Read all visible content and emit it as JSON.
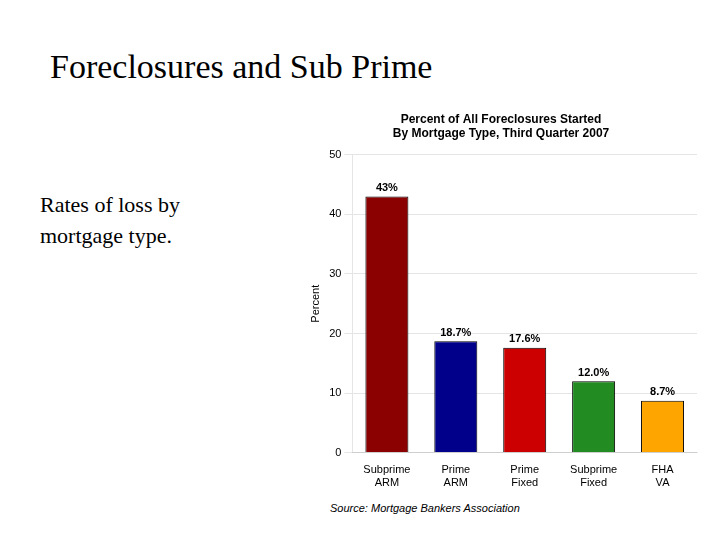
{
  "chart_data": {
    "type": "bar",
    "title": "Percent of All Foreclosures Started\nBy Mortgage Type, Third Quarter 2007",
    "annotations": [
      "Foreclosures and Sub Prime",
      "Rates of loss by\nmortgage type.",
      "Source: Mortgage Bankers Association"
    ],
    "categories": [
      "Subprime\nARM",
      "Prime\nARM",
      "Prime\nFixed",
      "Subprime\nFixed",
      "FHA\nVA"
    ],
    "values": [
      43.0,
      18.7,
      17.6,
      12.0,
      8.7
    ],
    "value_labels": [
      "43%",
      "18.7%",
      "17.6%",
      "12.0%",
      "8.7%"
    ],
    "data_labels": true,
    "colors": [
      "#8B0000",
      "#00008B",
      "#CC0000",
      "#228B22",
      "#FFA500"
    ],
    "ylabel": "Percent",
    "ylim": [
      0,
      50
    ],
    "yticks": [
      0,
      10,
      20,
      30,
      40,
      50
    ],
    "grid": true
  }
}
